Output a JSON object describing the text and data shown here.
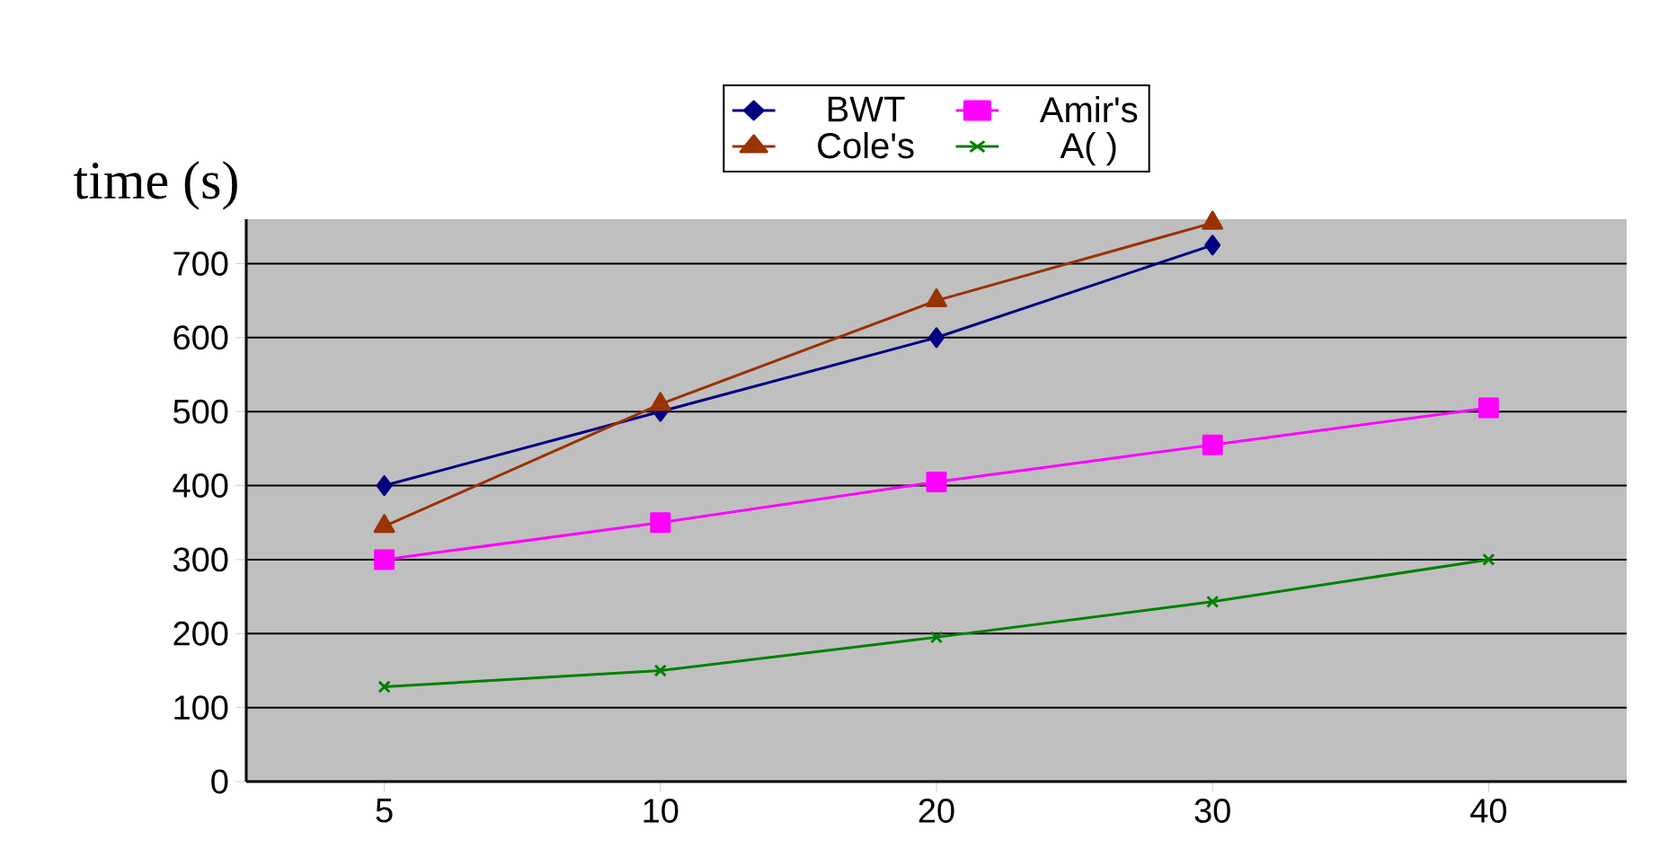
{
  "chart_data": {
    "type": "line",
    "ylabel": "time (s)",
    "categories": [
      "5",
      "10",
      "20",
      "30",
      "40"
    ],
    "series": [
      {
        "name": "BWT",
        "color": "#000080",
        "marker": "diamond",
        "values": [
          400,
          500,
          600,
          725,
          null
        ]
      },
      {
        "name": "Amir's",
        "color": "#ff00ff",
        "marker": "square",
        "values": [
          300,
          350,
          405,
          455,
          505
        ]
      },
      {
        "name": "Cole's",
        "color": "#993300",
        "marker": "triangle",
        "values": [
          345,
          510,
          650,
          755,
          null
        ]
      },
      {
        "name": "A( )",
        "color": "#008000",
        "marker": "cross",
        "values": [
          128,
          150,
          195,
          243,
          300
        ]
      }
    ],
    "ylim": [
      0,
      760
    ],
    "yticks": [
      0,
      100,
      200,
      300,
      400,
      500,
      600,
      700
    ],
    "grid": "y",
    "legend": "top"
  }
}
